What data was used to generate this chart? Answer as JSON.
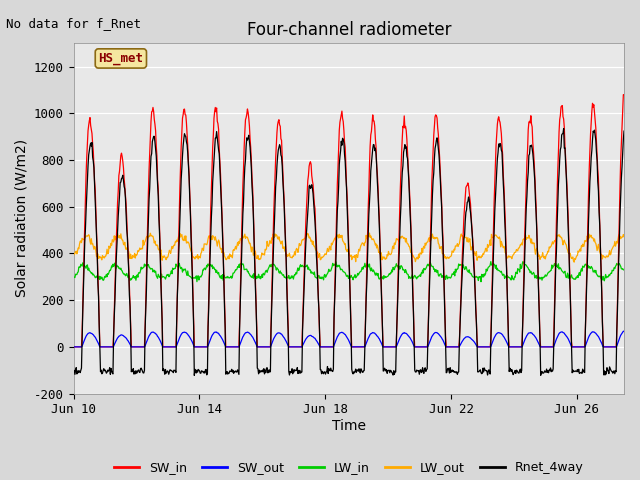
{
  "title": "Four-channel radiometer",
  "xlabel": "Time",
  "ylabel": "Solar radiation (W/m2)",
  "annotation": "No data for f_Rnet",
  "label_box": "HS_met",
  "ylim": [
    -200,
    1300
  ],
  "fig_bg_color": "#d8d8d8",
  "plot_bg_color": "#e8e8e8",
  "x_start_day": 10,
  "n_days": 17.5,
  "x_ticks": [
    10,
    14,
    18,
    22,
    26
  ],
  "x_tick_labels": [
    "Jun 10",
    "Jun 14",
    "Jun 18",
    "Jun 22",
    "Jun 26"
  ],
  "y_ticks": [
    -200,
    0,
    200,
    400,
    600,
    800,
    1000,
    1200
  ],
  "legend": {
    "SW_in": {
      "color": "#ff0000"
    },
    "SW_out": {
      "color": "#0000ff"
    },
    "LW_in": {
      "color": "#00cc00"
    },
    "LW_out": {
      "color": "#ffaa00"
    },
    "Rnet_4way": {
      "color": "#000000"
    }
  }
}
